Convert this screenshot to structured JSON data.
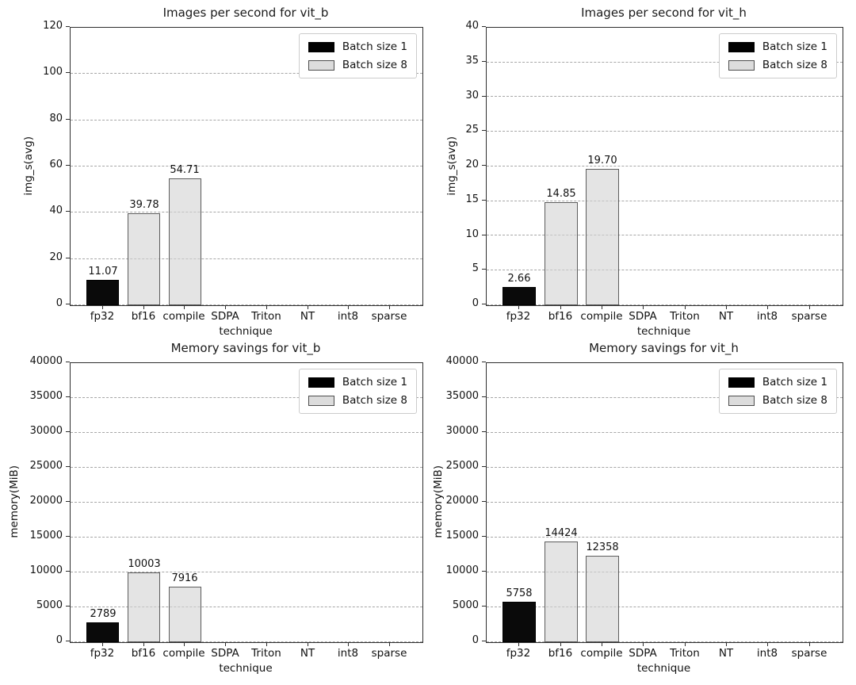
{
  "figure": {
    "background": "#ffffff",
    "grid_style": "dashed-horizontal",
    "grid_color": "#b0b0b0",
    "spine_color": "#000000"
  },
  "legend": {
    "entries": [
      {
        "label": "Batch size 1",
        "color": "#000000"
      },
      {
        "label": "Batch size 8",
        "color": "#d3d3d3"
      }
    ],
    "position": "upper-right"
  },
  "chart_data": [
    {
      "type": "bar",
      "title": "Images per second for vit_b",
      "xlabel": "technique",
      "ylabel": "img_s(avg)",
      "ylim": [
        0,
        120
      ],
      "yticks": [
        0,
        20,
        40,
        60,
        80,
        100,
        120
      ],
      "categories": [
        "fp32",
        "bf16",
        "compile",
        "SDPA",
        "Triton",
        "NT",
        "int8",
        "sparse"
      ],
      "series": [
        {
          "name": "Batch size 1",
          "color": "#000000",
          "values": [
            11.07,
            null,
            null,
            null,
            null,
            null,
            null,
            null
          ]
        },
        {
          "name": "Batch size 8",
          "color": "#d3d3d3",
          "values": [
            null,
            39.78,
            54.71,
            null,
            null,
            null,
            null,
            null
          ]
        }
      ],
      "bar_labels": [
        "11.07",
        "39.78",
        "54.71",
        "",
        "",
        "",
        "",
        ""
      ],
      "grid": "dashed-horizontal",
      "legend_position": "upper-right"
    },
    {
      "type": "bar",
      "title": "Images per second for vit_h",
      "xlabel": "technique",
      "ylabel": "img_s(avg)",
      "ylim": [
        0,
        40
      ],
      "yticks": [
        0,
        5,
        10,
        15,
        20,
        25,
        30,
        35,
        40
      ],
      "categories": [
        "fp32",
        "bf16",
        "compile",
        "SDPA",
        "Triton",
        "NT",
        "int8",
        "sparse"
      ],
      "series": [
        {
          "name": "Batch size 1",
          "color": "#000000",
          "values": [
            2.66,
            null,
            null,
            null,
            null,
            null,
            null,
            null
          ]
        },
        {
          "name": "Batch size 8",
          "color": "#d3d3d3",
          "values": [
            null,
            14.85,
            19.7,
            null,
            null,
            null,
            null,
            null
          ]
        }
      ],
      "bar_labels": [
        "2.66",
        "14.85",
        "19.70",
        "",
        "",
        "",
        "",
        ""
      ],
      "grid": "dashed-horizontal",
      "legend_position": "upper-right"
    },
    {
      "type": "bar",
      "title": "Memory savings for vit_b",
      "xlabel": "technique",
      "ylabel": "memory(MiB)",
      "ylim": [
        0,
        40000
      ],
      "yticks": [
        0,
        5000,
        10000,
        15000,
        20000,
        25000,
        30000,
        35000,
        40000
      ],
      "categories": [
        "fp32",
        "bf16",
        "compile",
        "SDPA",
        "Triton",
        "NT",
        "int8",
        "sparse"
      ],
      "series": [
        {
          "name": "Batch size 1",
          "color": "#000000",
          "values": [
            2789,
            null,
            null,
            null,
            null,
            null,
            null,
            null
          ]
        },
        {
          "name": "Batch size 8",
          "color": "#d3d3d3",
          "values": [
            null,
            10003,
            7916,
            null,
            null,
            null,
            null,
            null
          ]
        }
      ],
      "bar_labels": [
        "2789",
        "10003",
        "7916",
        "",
        "",
        "",
        "",
        ""
      ],
      "grid": "dashed-horizontal",
      "legend_position": "upper-right"
    },
    {
      "type": "bar",
      "title": "Memory savings for vit_h",
      "xlabel": "technique",
      "ylabel": "memory(MiB)",
      "ylim": [
        0,
        40000
      ],
      "yticks": [
        0,
        5000,
        10000,
        15000,
        20000,
        25000,
        30000,
        35000,
        40000
      ],
      "categories": [
        "fp32",
        "bf16",
        "compile",
        "SDPA",
        "Triton",
        "NT",
        "int8",
        "sparse"
      ],
      "series": [
        {
          "name": "Batch size 1",
          "color": "#000000",
          "values": [
            5758,
            null,
            null,
            null,
            null,
            null,
            null,
            null
          ]
        },
        {
          "name": "Batch size 8",
          "color": "#d3d3d3",
          "values": [
            null,
            14424,
            12358,
            null,
            null,
            null,
            null,
            null
          ]
        }
      ],
      "bar_labels": [
        "5758",
        "14424",
        "12358",
        "",
        "",
        "",
        "",
        ""
      ],
      "grid": "dashed-horizontal",
      "legend_position": "upper-right"
    }
  ]
}
